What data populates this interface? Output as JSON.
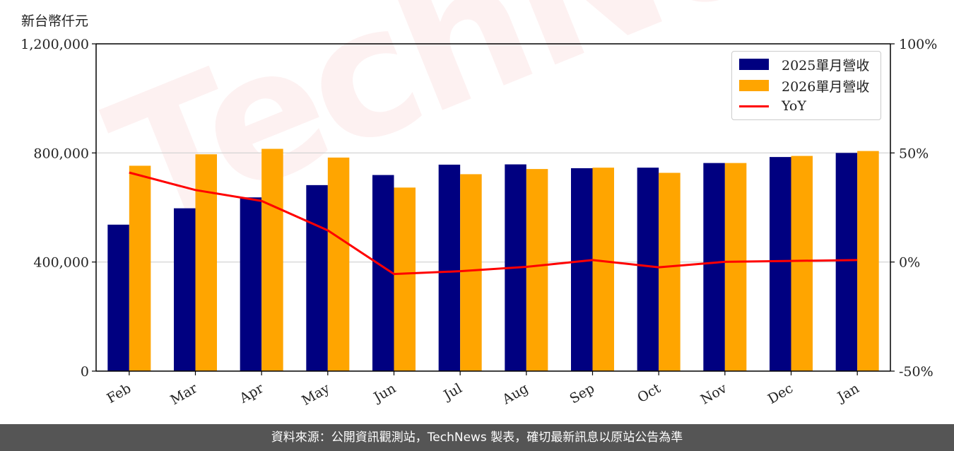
{
  "chart_data": {
    "type": "bar",
    "unit_label": "新台幣仟元",
    "categories": [
      "Feb",
      "Mar",
      "Apr",
      "May",
      "Jun",
      "Jul",
      "Aug",
      "Sep",
      "Oct",
      "Nov",
      "Dec",
      "Jan"
    ],
    "series": [
      {
        "name": "2025單月營收",
        "type": "bar",
        "axis": "left",
        "color": "#000080",
        "values": [
          537000,
          597000,
          637000,
          682000,
          719000,
          757000,
          758000,
          744000,
          746000,
          763000,
          785000,
          800000
        ]
      },
      {
        "name": "2026單月營收",
        "type": "bar",
        "axis": "left",
        "color": "#FFA500",
        "values": [
          753000,
          795000,
          815000,
          783000,
          673000,
          722000,
          741000,
          746000,
          727000,
          763000,
          789000,
          807000
        ]
      },
      {
        "name": "YoY",
        "type": "line",
        "axis": "right",
        "color": "#FF0000",
        "values": [
          41,
          33,
          28,
          14.5,
          -5.5,
          -4.2,
          -2.2,
          0.9,
          -2.4,
          0.1,
          0.5,
          0.9
        ]
      }
    ],
    "left_axis": {
      "ylim": [
        0,
        1200000
      ],
      "ticks": [
        0,
        400000,
        800000,
        1200000
      ],
      "tick_labels": [
        "0",
        "400,000",
        "800,000",
        "1,200,000"
      ]
    },
    "right_axis": {
      "ylim": [
        -50,
        100
      ],
      "ticks": [
        -50,
        0,
        50,
        100
      ],
      "tick_labels": [
        "-50%",
        "0%",
        "50%",
        "100%"
      ]
    },
    "grid": "horizontal",
    "legend_placement": "top-right"
  },
  "watermark": "TechNews",
  "footer": {
    "text": "資料來源：公開資訊觀測站，TechNews 製表，確切最新訊息以原站公告為準"
  }
}
